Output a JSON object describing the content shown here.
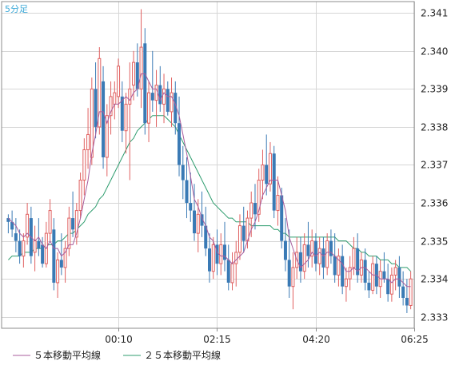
{
  "timeframe_label": "5分足",
  "chart_data": {
    "type": "candlestick",
    "title": "",
    "xlabel": "",
    "ylabel": "",
    "ylim": [
      2.3327,
      2.3413
    ],
    "yticks": [
      2.333,
      2.334,
      2.335,
      2.336,
      2.337,
      2.338,
      2.339,
      2.34,
      2.341
    ],
    "xticks": [
      {
        "index": 29,
        "label": "00:10"
      },
      {
        "index": 55,
        "label": "02:15"
      },
      {
        "index": 81,
        "label": "04:20"
      },
      {
        "index": 107,
        "label": "06:25"
      }
    ],
    "grid": true,
    "legend_position": "bottom",
    "colors": {
      "up": "#e06060",
      "down": "#3a7ab5",
      "ma5": "#a85c9c",
      "ma25": "#2f9d6f"
    },
    "legend": [
      {
        "key": "ma5",
        "label": "５本移動平均線",
        "color": "#a85c9c"
      },
      {
        "key": "ma25",
        "label": "２５本移動平均線",
        "color": "#2f9d6f"
      }
    ],
    "candles": [
      [
        2.3356,
        2.3357,
        2.3352,
        2.3355
      ],
      [
        2.3355,
        2.3358,
        2.3351,
        2.3353
      ],
      [
        2.3352,
        2.3356,
        2.3347,
        2.335
      ],
      [
        2.335,
        2.3353,
        2.3344,
        2.3346
      ],
      [
        2.3346,
        2.3352,
        2.3343,
        2.335
      ],
      [
        2.3351,
        2.336,
        2.3349,
        2.3357
      ],
      [
        2.3356,
        2.3359,
        2.3344,
        2.3346
      ],
      [
        2.3347,
        2.3354,
        2.3342,
        2.335
      ],
      [
        2.335,
        2.3356,
        2.3346,
        2.3348
      ],
      [
        2.3349,
        2.3351,
        2.3343,
        2.3344
      ],
      [
        2.3344,
        2.3355,
        2.3343,
        2.3352
      ],
      [
        2.3352,
        2.3361,
        2.335,
        2.3358
      ],
      [
        2.3353,
        2.3356,
        2.3337,
        2.3339
      ],
      [
        2.3339,
        2.3347,
        2.3335,
        2.3345
      ],
      [
        2.3345,
        2.3352,
        2.3341,
        2.3343
      ],
      [
        2.3343,
        2.335,
        2.3339,
        2.3348
      ],
      [
        2.3348,
        2.3359,
        2.3346,
        2.3356
      ],
      [
        2.3356,
        2.3363,
        2.3351,
        2.3353
      ],
      [
        2.3351,
        2.336,
        2.3349,
        2.3358
      ],
      [
        2.3358,
        2.3368,
        2.3356,
        2.3366
      ],
      [
        2.3366,
        2.3377,
        2.3362,
        2.3374
      ],
      [
        2.3374,
        2.3385,
        2.3369,
        2.3378
      ],
      [
        2.3372,
        2.3393,
        2.337,
        2.339
      ],
      [
        2.339,
        2.3397,
        2.3377,
        2.338
      ],
      [
        2.338,
        2.3401,
        2.3378,
        2.3398
      ],
      [
        2.3392,
        2.3396,
        2.3369,
        2.3372
      ],
      [
        2.3372,
        2.3386,
        2.3367,
        2.3383
      ],
      [
        2.3383,
        2.3392,
        2.3378,
        2.3388
      ],
      [
        2.3386,
        2.3392,
        2.3382,
        2.3389
      ],
      [
        2.3388,
        2.3398,
        2.3385,
        2.3396
      ],
      [
        2.3388,
        2.3392,
        2.3376,
        2.3379
      ],
      [
        2.3379,
        2.3389,
        2.3373,
        2.3386
      ],
      [
        2.3386,
        2.3397,
        2.3366,
        2.339
      ],
      [
        2.3391,
        2.34,
        2.3387,
        2.3397
      ],
      [
        2.3397,
        2.3402,
        2.3388,
        2.339
      ],
      [
        2.339,
        2.3411,
        2.3385,
        2.3401
      ],
      [
        2.3402,
        2.3406,
        2.3378,
        2.3381
      ],
      [
        2.3381,
        2.3392,
        2.3376,
        2.3389
      ],
      [
        2.3389,
        2.34,
        2.3384,
        2.3387
      ],
      [
        2.3387,
        2.3395,
        2.338,
        2.3391
      ],
      [
        2.3391,
        2.3396,
        2.3384,
        2.3386
      ],
      [
        2.3386,
        2.3394,
        2.3381,
        2.339
      ],
      [
        2.339,
        2.3392,
        2.3383,
        2.3384
      ],
      [
        2.3384,
        2.3393,
        2.338,
        2.3389
      ],
      [
        2.3389,
        2.3392,
        2.3378,
        2.3381
      ],
      [
        2.3381,
        2.3388,
        2.3367,
        2.337
      ],
      [
        2.337,
        2.3375,
        2.3361,
        2.3366
      ],
      [
        2.3366,
        2.3372,
        2.3356,
        2.336
      ],
      [
        2.336,
        2.3368,
        2.3355,
        2.3358
      ],
      [
        2.3358,
        2.3365,
        2.335,
        2.3352
      ],
      [
        2.3352,
        2.3361,
        2.3347,
        2.3357
      ],
      [
        2.3357,
        2.3363,
        2.3351,
        2.3354
      ],
      [
        2.3354,
        2.3359,
        2.3346,
        2.3348
      ],
      [
        2.3348,
        2.3352,
        2.3339,
        2.3342
      ],
      [
        2.3342,
        2.3351,
        2.334,
        2.3349
      ],
      [
        2.3349,
        2.3353,
        2.3341,
        2.3344
      ],
      [
        2.3344,
        2.3352,
        2.3341,
        2.3349
      ],
      [
        2.3349,
        2.3355,
        2.3342,
        2.3345
      ],
      [
        2.3345,
        2.3349,
        2.3337,
        2.3339
      ],
      [
        2.3339,
        2.3347,
        2.3337,
        2.3344
      ],
      [
        2.3344,
        2.335,
        2.3338,
        2.3347
      ],
      [
        2.3347,
        2.3357,
        2.3345,
        2.3354
      ],
      [
        2.3354,
        2.3359,
        2.3347,
        2.335
      ],
      [
        2.335,
        2.3358,
        2.3348,
        2.3356
      ],
      [
        2.3356,
        2.3363,
        2.3351,
        2.336
      ],
      [
        2.336,
        2.3365,
        2.3353,
        2.3357
      ],
      [
        2.3357,
        2.3369,
        2.3355,
        2.3366
      ],
      [
        2.3366,
        2.3374,
        2.3361,
        2.337
      ],
      [
        2.337,
        2.3378,
        2.3362,
        2.3365
      ],
      [
        2.3365,
        2.3376,
        2.3363,
        2.3373
      ],
      [
        2.3373,
        2.3375,
        2.3356,
        2.3358
      ],
      [
        2.3358,
        2.3367,
        2.3354,
        2.3362
      ],
      [
        2.3362,
        2.3364,
        2.3348,
        2.335
      ],
      [
        2.335,
        2.3356,
        2.3342,
        2.3345
      ],
      [
        2.3345,
        2.3353,
        2.3335,
        2.3338
      ],
      [
        2.3338,
        2.3347,
        2.3332,
        2.3343
      ],
      [
        2.3343,
        2.3351,
        2.334,
        2.3347
      ],
      [
        2.3347,
        2.3351,
        2.3339,
        2.3342
      ],
      [
        2.3342,
        2.3352,
        2.334,
        2.3349
      ],
      [
        2.3349,
        2.3355,
        2.3343,
        2.3346
      ],
      [
        2.3346,
        2.3353,
        2.3343,
        2.335
      ],
      [
        2.335,
        2.3352,
        2.3342,
        2.3344
      ],
      [
        2.3344,
        2.3351,
        2.3341,
        2.3348
      ],
      [
        2.3348,
        2.3351,
        2.334,
        2.3343
      ],
      [
        2.3343,
        2.3352,
        2.3341,
        2.335
      ],
      [
        2.335,
        2.3353,
        2.3344,
        2.3346
      ],
      [
        2.3346,
        2.3352,
        2.3339,
        2.3341
      ],
      [
        2.3341,
        2.3348,
        2.3338,
        2.3346
      ],
      [
        2.3346,
        2.3349,
        2.3336,
        2.3338
      ],
      [
        2.3338,
        2.3343,
        2.3334,
        2.334
      ],
      [
        2.334,
        2.3346,
        2.3337,
        2.3343
      ],
      [
        2.3343,
        2.3351,
        2.3341,
        2.3348
      ],
      [
        2.3348,
        2.3352,
        2.3339,
        2.3341
      ],
      [
        2.3341,
        2.3347,
        2.3339,
        2.3345
      ],
      [
        2.3345,
        2.3348,
        2.3337,
        2.3339
      ],
      [
        2.3339,
        2.3342,
        2.3335,
        2.3337
      ],
      [
        2.3337,
        2.3346,
        2.3336,
        2.3344
      ],
      [
        2.3344,
        2.3346,
        2.3336,
        2.3338
      ],
      [
        2.3338,
        2.3345,
        2.3335,
        2.3342
      ],
      [
        2.3342,
        2.3347,
        2.3339,
        2.334
      ],
      [
        2.334,
        2.3344,
        2.3334,
        2.3336
      ],
      [
        2.3336,
        2.3343,
        2.3334,
        2.3341
      ],
      [
        2.3341,
        2.3345,
        2.3337,
        2.3343
      ],
      [
        2.3343,
        2.3346,
        2.3335,
        2.3338
      ],
      [
        2.3338,
        2.3342,
        2.3333,
        2.3335
      ],
      [
        2.3335,
        2.334,
        2.3331,
        2.3333
      ],
      [
        2.3333,
        2.3342,
        2.3332,
        2.334
      ]
    ],
    "ma5": [
      2.3356,
      2.3355,
      2.3354,
      2.3352,
      2.3351,
      2.3352,
      2.3351,
      2.335,
      2.3351,
      2.3349,
      2.3348,
      2.335,
      2.3348,
      2.3348,
      2.3346,
      2.3347,
      2.3349,
      2.3349,
      2.3352,
      2.3356,
      2.3361,
      2.3366,
      2.3373,
      2.3378,
      2.3384,
      2.3384,
      2.3381,
      2.3384,
      2.3386,
      2.3386,
      2.3387,
      2.3388,
      2.3387,
      2.3389,
      2.339,
      2.3394,
      2.3394,
      2.3392,
      2.339,
      2.339,
      2.3387,
      2.3389,
      2.3388,
      2.3388,
      2.3386,
      2.3383,
      2.3378,
      2.3373,
      2.3367,
      2.3361,
      2.3359,
      2.3356,
      2.3354,
      2.3351,
      2.335,
      2.3347,
      2.3346,
      2.3346,
      2.3345,
      2.3344,
      2.3345,
      2.3346,
      2.3347,
      2.335,
      2.3353,
      2.3355,
      2.3358,
      2.3362,
      2.3364,
      2.3366,
      2.3366,
      2.3366,
      2.3362,
      2.3358,
      2.3351,
      2.3348,
      2.3345,
      2.3343,
      2.3344,
      2.3345,
      2.3347,
      2.3346,
      2.3347,
      2.3346,
      2.3347,
      2.3347,
      2.3346,
      2.3345,
      2.3344,
      2.3342,
      2.3342,
      2.3343,
      2.3342,
      2.3343,
      2.3343,
      2.3342,
      2.3341,
      2.3341,
      2.334,
      2.334,
      2.334,
      2.3339,
      2.334,
      2.334,
      2.3339,
      2.3338,
      2.3338
    ],
    "ma25": [
      2.3345,
      2.3346,
      2.3346,
      2.3346,
      2.3347,
      2.3347,
      2.3347,
      2.3348,
      2.3348,
      2.3348,
      2.3349,
      2.3349,
      2.3349,
      2.335,
      2.335,
      2.3351,
      2.3352,
      2.3352,
      2.3353,
      2.3354,
      2.3355,
      2.3357,
      2.3358,
      2.3359,
      2.3361,
      2.3362,
      2.3364,
      2.3366,
      2.3368,
      2.337,
      2.3372,
      2.3374,
      2.3376,
      2.3377,
      2.3379,
      2.338,
      2.3381,
      2.3382,
      2.3383,
      2.3383,
      2.3383,
      2.3383,
      2.3382,
      2.3381,
      2.338,
      2.3378,
      2.3376,
      2.3374,
      2.3372,
      2.337,
      2.3368,
      2.3366,
      2.3364,
      2.3362,
      2.336,
      2.3359,
      2.3358,
      2.3357,
      2.3356,
      2.3356,
      2.3355,
      2.3355,
      2.3355,
      2.3355,
      2.3354,
      2.3354,
      2.3354,
      2.3354,
      2.3354,
      2.3354,
      2.3353,
      2.3353,
      2.3352,
      2.3352,
      2.3351,
      2.3351,
      2.3351,
      2.3351,
      2.3351,
      2.3351,
      2.3351,
      2.3351,
      2.3351,
      2.3351,
      2.3351,
      2.3351,
      2.3351,
      2.335,
      2.335,
      2.335,
      2.3349,
      2.3348,
      2.3348,
      2.3347,
      2.3347,
      2.3346,
      2.3346,
      2.3346,
      2.3345,
      2.3345,
      2.3345,
      2.3344,
      2.3344,
      2.3343,
      2.3343,
      2.3343,
      2.3342
    ]
  }
}
